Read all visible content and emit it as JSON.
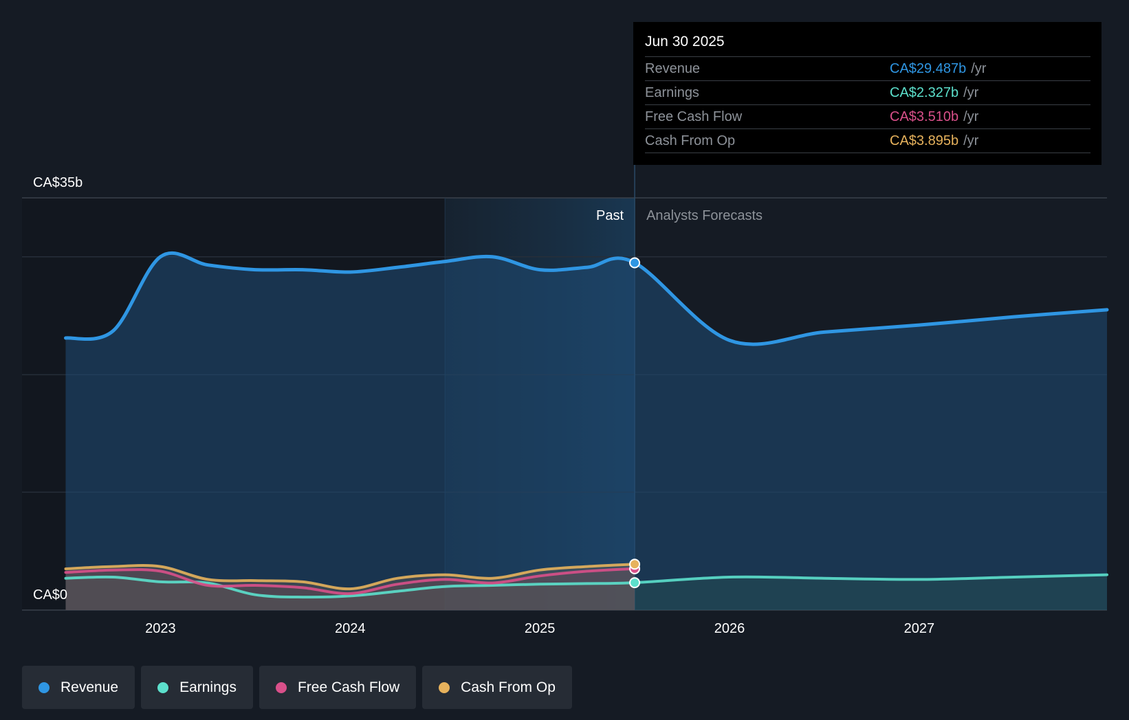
{
  "colors": {
    "revenue": "#2f96e3",
    "earnings": "#5ce0cc",
    "free_cash_flow": "#d9508a",
    "cash_from_op": "#e7b25c",
    "background": "#151b24"
  },
  "tooltip": {
    "date": "Jun 30 2025",
    "rows": [
      {
        "label": "Revenue",
        "value": "CA$29.487b",
        "unit": "/yr"
      },
      {
        "label": "Earnings",
        "value": "CA$2.327b",
        "unit": "/yr"
      },
      {
        "label": "Free Cash Flow",
        "value": "CA$3.510b",
        "unit": "/yr"
      },
      {
        "label": "Cash From Op",
        "value": "CA$3.895b",
        "unit": "/yr"
      }
    ]
  },
  "legend": [
    {
      "label": "Revenue",
      "color": "#2f96e3"
    },
    {
      "label": "Earnings",
      "color": "#5ce0cc"
    },
    {
      "label": "Free Cash Flow",
      "color": "#d9508a"
    },
    {
      "label": "Cash From Op",
      "color": "#e7b25c"
    }
  ],
  "chart_data": {
    "type": "area",
    "title": "",
    "xlabel": "",
    "ylabel": "",
    "y_top_label": "CA$35b",
    "y_bottom_label": "CA$0",
    "ylim": [
      0,
      35
    ],
    "xlim": [
      2022.27,
      2027.99
    ],
    "x_ticks": [
      "2023",
      "2024",
      "2025",
      "2026",
      "2027"
    ],
    "x_tick_values": [
      2023,
      2024,
      2025,
      2026,
      2027
    ],
    "past_label": "Past",
    "forecast_label": "Analysts Forecasts",
    "past_end": 2025.5,
    "highlight_start": 2024.5,
    "series": [
      {
        "name": "Revenue",
        "key": "revenue",
        "points": [
          [
            2022.5,
            23.1
          ],
          [
            2022.75,
            23.7
          ],
          [
            2023.0,
            30.0
          ],
          [
            2023.25,
            29.3
          ],
          [
            2023.5,
            28.9
          ],
          [
            2023.75,
            28.9
          ],
          [
            2024.0,
            28.7
          ],
          [
            2024.25,
            29.1
          ],
          [
            2024.5,
            29.6
          ],
          [
            2024.75,
            30.0
          ],
          [
            2025.0,
            28.9
          ],
          [
            2025.25,
            29.1
          ],
          [
            2025.5,
            29.487
          ],
          [
            2026.0,
            22.9
          ],
          [
            2026.5,
            23.6
          ],
          [
            2027.0,
            24.2
          ],
          [
            2027.5,
            24.9
          ],
          [
            2027.99,
            25.5
          ]
        ]
      },
      {
        "name": "Earnings",
        "key": "earnings",
        "points": [
          [
            2022.5,
            2.7
          ],
          [
            2022.75,
            2.8
          ],
          [
            2023.0,
            2.4
          ],
          [
            2023.25,
            2.3
          ],
          [
            2023.5,
            1.3
          ],
          [
            2023.75,
            1.1
          ],
          [
            2024.0,
            1.2
          ],
          [
            2024.25,
            1.6
          ],
          [
            2024.5,
            2.0
          ],
          [
            2024.75,
            2.1
          ],
          [
            2025.0,
            2.2
          ],
          [
            2025.25,
            2.25
          ],
          [
            2025.5,
            2.327
          ],
          [
            2026.0,
            2.8
          ],
          [
            2026.5,
            2.7
          ],
          [
            2027.0,
            2.6
          ],
          [
            2027.5,
            2.8
          ],
          [
            2027.99,
            3.0
          ]
        ]
      },
      {
        "name": "Free Cash Flow",
        "key": "free_cash_flow",
        "points": [
          [
            2022.5,
            3.2
          ],
          [
            2022.75,
            3.4
          ],
          [
            2023.0,
            3.3
          ],
          [
            2023.25,
            2.1
          ],
          [
            2023.5,
            2.1
          ],
          [
            2023.75,
            1.9
          ],
          [
            2024.0,
            1.4
          ],
          [
            2024.25,
            2.2
          ],
          [
            2024.5,
            2.6
          ],
          [
            2024.75,
            2.3
          ],
          [
            2025.0,
            2.9
          ],
          [
            2025.25,
            3.3
          ],
          [
            2025.5,
            3.51
          ]
        ]
      },
      {
        "name": "Cash From Op",
        "key": "cash_from_op",
        "points": [
          [
            2022.5,
            3.5
          ],
          [
            2022.75,
            3.7
          ],
          [
            2023.0,
            3.7
          ],
          [
            2023.25,
            2.6
          ],
          [
            2023.5,
            2.5
          ],
          [
            2023.75,
            2.4
          ],
          [
            2024.0,
            1.8
          ],
          [
            2024.25,
            2.7
          ],
          [
            2024.5,
            3.0
          ],
          [
            2024.75,
            2.7
          ],
          [
            2025.0,
            3.4
          ],
          [
            2025.25,
            3.7
          ],
          [
            2025.5,
            3.895
          ]
        ]
      }
    ]
  }
}
